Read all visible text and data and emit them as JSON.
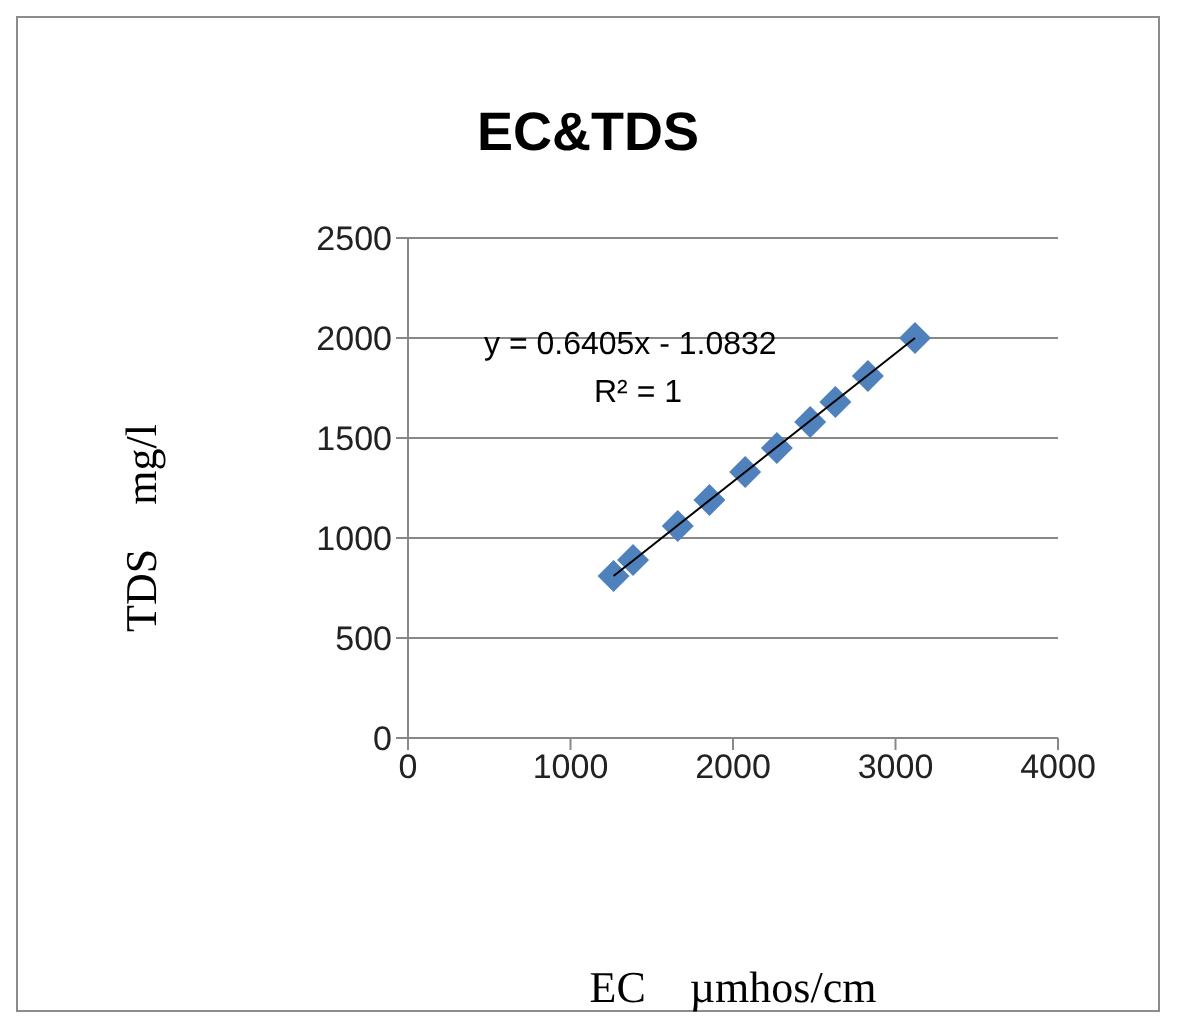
{
  "chart_data": {
    "type": "scatter",
    "title": "EC&TDS",
    "xlabel": "EC    µmhos/cm",
    "ylabel": "TDS    mg/l",
    "xlim": [
      0,
      4000
    ],
    "xticks": [
      0,
      1000,
      2000,
      3000,
      4000
    ],
    "ylim": [
      0,
      2500
    ],
    "yticks": [
      0,
      500,
      1000,
      1500,
      2000,
      2500
    ],
    "grid": "y",
    "annotations": [
      "y = 0.6405x - 1.0832",
      "R² = 1"
    ],
    "series": [
      {
        "color": "#4f81bd",
        "marker": "diamond",
        "x": [
          1265,
          1385,
          1660,
          1855,
          2075,
          2270,
          2475,
          2630,
          2830,
          3120
        ],
        "values": [
          810,
          890,
          1060,
          1190,
          1330,
          1450,
          1580,
          1680,
          1810,
          2000
        ]
      },
      {
        "type": "line",
        "color": "#000000",
        "marker": "none",
        "x": [
          1265,
          3120
        ],
        "values": [
          810,
          2000
        ]
      }
    ]
  }
}
